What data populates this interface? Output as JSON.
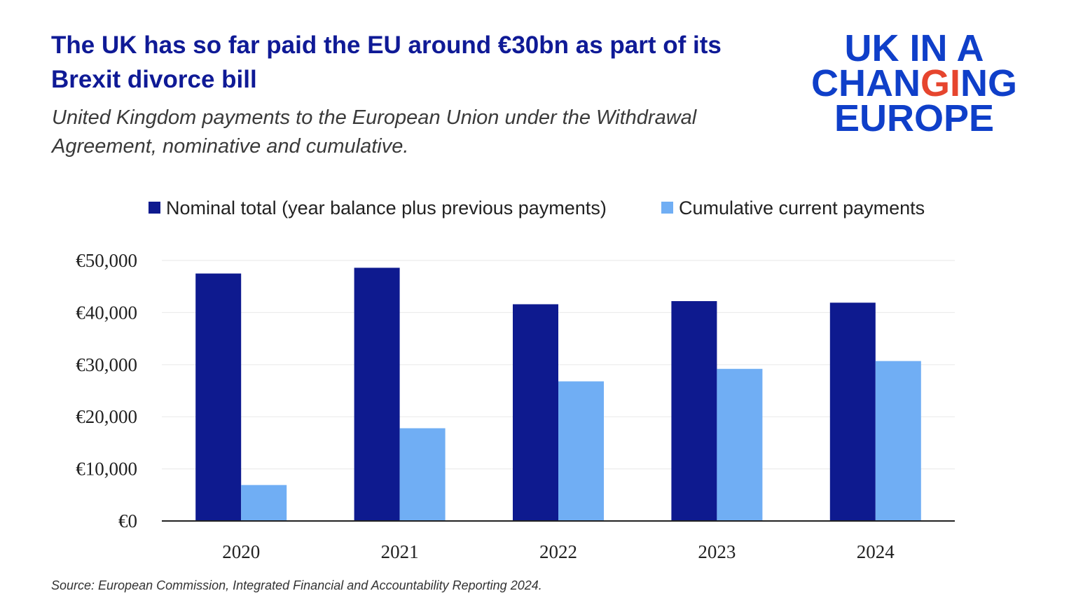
{
  "header": {
    "title": "The UK has so far paid the EU around €30bn as part of its Brexit divorce bill",
    "subtitle": "United Kingdom payments to the European Union under the Withdrawal Agreement, nominative and cumulative."
  },
  "logo": {
    "line1": "UK IN A",
    "line2": "CHANGING",
    "line3": "EUROPE"
  },
  "source": "Source: European Commission, Integrated Financial and Accountability Reporting 2024.",
  "colors": {
    "title": "#0f1a96",
    "series_nominal": "#0e1a8f",
    "series_cumulative": "#70aef4",
    "logo_blue": "#0f3fc9",
    "logo_accent": "#e6452e"
  },
  "chart_data": {
    "type": "bar",
    "categories": [
      "2020",
      "2021",
      "2022",
      "2023",
      "2024"
    ],
    "series": [
      {
        "name": "Nominal total (year balance plus previous payments)",
        "values": [
          47500,
          48600,
          41600,
          42200,
          41900
        ]
      },
      {
        "name": "Cumulative current payments",
        "values": [
          6900,
          17800,
          26800,
          29200,
          30700
        ]
      }
    ],
    "ylim": [
      0,
      50000
    ],
    "yticks": [
      0,
      10000,
      20000,
      30000,
      40000,
      50000
    ],
    "ytick_labels": [
      "€0",
      "€10,000",
      "€20,000",
      "€30,000",
      "€40,000",
      "€50,000"
    ],
    "grid": true,
    "legend_position": "top"
  }
}
